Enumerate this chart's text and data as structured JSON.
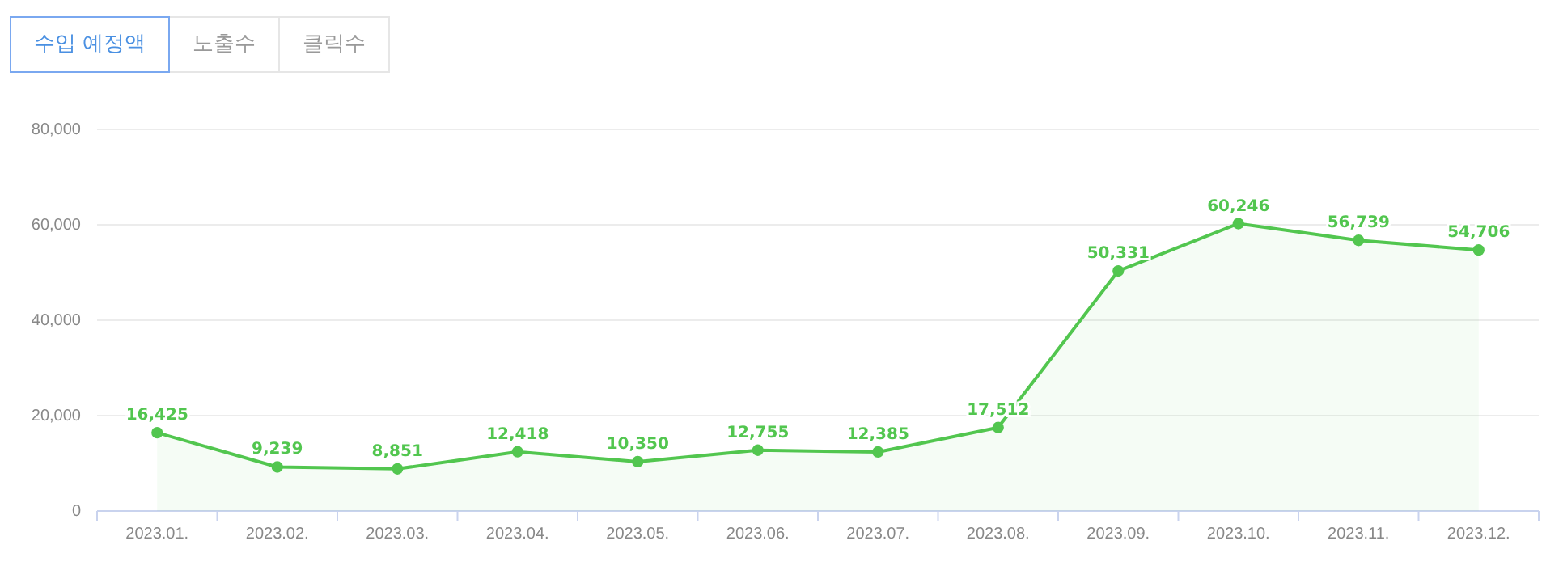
{
  "chart_data": {
    "type": "area",
    "categories": [
      "2023.01.",
      "2023.02.",
      "2023.03.",
      "2023.04.",
      "2023.05.",
      "2023.06.",
      "2023.07.",
      "2023.08.",
      "2023.09.",
      "2023.10.",
      "2023.11.",
      "2023.12."
    ],
    "series": [
      {
        "color": "#52c64f",
        "values": [
          16425,
          9239,
          8851,
          12418,
          10350,
          12755,
          12385,
          17512,
          50331,
          60246,
          56739,
          54706
        ],
        "value_labels": [
          "16,425",
          "9,239",
          "8,851",
          "12,418",
          "10,350",
          "12,755",
          "12,385",
          "17,512",
          "50,331",
          "60,246",
          "56,739",
          "54,706"
        ]
      }
    ],
    "ylim": [
      0,
      80000
    ],
    "yticks": [
      {
        "value": 0,
        "label": "0"
      },
      {
        "value": 20000,
        "label": "20,000"
      },
      {
        "value": 40000,
        "label": "40,000"
      },
      {
        "value": 60000,
        "label": "60,000"
      },
      {
        "value": 80000,
        "label": "80,000"
      }
    ],
    "grid": "y",
    "marker": "circle",
    "annotations": [
      "수입 예정액",
      "노출수",
      "클릭수"
    ]
  }
}
